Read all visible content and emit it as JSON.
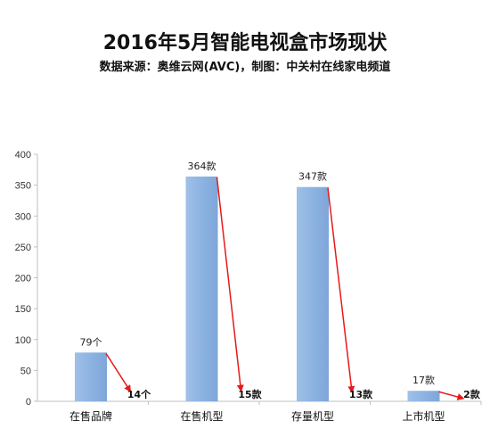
{
  "title": "2016年5月智能电视盒市场现状",
  "subtitle": "数据来源：奥维云网(AVC)，制图：中关村在线家电频道",
  "chart_data": {
    "type": "bar",
    "title": "2016年5月智能电视盒市场现状",
    "subtitle": "数据来源：奥维云网(AVC)，制图：中关村在线家电频道",
    "categories": [
      "在售品牌",
      "在售机型",
      "存量机型",
      "上市机型"
    ],
    "values": [
      79,
      364,
      347,
      17
    ],
    "value_labels": [
      "79个",
      "364款",
      "347款",
      "17款"
    ],
    "arrow_targets": [
      14,
      15,
      13,
      2
    ],
    "arrow_labels": [
      "14个",
      "15款",
      "13款",
      "2款"
    ],
    "ylim": [
      0,
      400
    ],
    "yticks": [
      0,
      50,
      100,
      150,
      200,
      250,
      300,
      350,
      400
    ],
    "grid": false,
    "legend": "none",
    "bar_color": "#8db3e2",
    "arrow_color": "#e8191a",
    "axis_color": "#bfbfbf"
  }
}
